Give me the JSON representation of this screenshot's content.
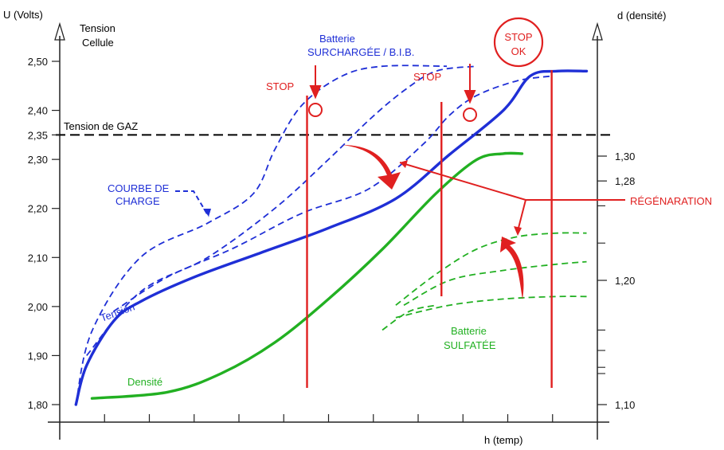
{
  "chart_data": {
    "type": "line",
    "title": "",
    "left_axis": {
      "label": "U (Volts)",
      "sublabel_line1": "Tension",
      "sublabel_line2": "Cellule",
      "ticks": [
        "1,80",
        "1,90",
        "2,00",
        "2,10",
        "2,20",
        "2,30",
        "2,35",
        "2,40",
        "2,50"
      ],
      "range": [
        1.78,
        2.55
      ]
    },
    "right_axis": {
      "label": "d (densité)",
      "ticks": [
        "1,10",
        "1,20",
        "1,28",
        "1,30"
      ]
    },
    "x_axis": {
      "label": "h (temp)",
      "tick_count": 11
    },
    "reference_line": {
      "label": "Tension de GAZ",
      "value": 2.35
    },
    "series": [
      {
        "name": "Tension",
        "color": "#1f2fd6",
        "style": "solid",
        "points": [
          [
            0.6,
            1.8
          ],
          [
            1.0,
            1.88
          ],
          [
            2.0,
            1.97
          ],
          [
            3.0,
            2.01
          ],
          [
            5.0,
            2.06
          ],
          [
            7.5,
            2.11
          ],
          [
            10.0,
            2.16
          ],
          [
            12.5,
            2.22
          ],
          [
            14.5,
            2.31
          ],
          [
            16.5,
            2.4
          ],
          [
            17.5,
            2.47
          ],
          [
            18.5,
            2.48
          ],
          [
            19.6,
            2.48
          ]
        ]
      },
      {
        "name": "Densité",
        "color": "#22b022",
        "style": "solid",
        "points": [
          [
            1.2,
            1.105
          ],
          [
            4.0,
            1.11
          ],
          [
            6.0,
            1.125
          ],
          [
            8.0,
            1.15
          ],
          [
            10.0,
            1.185
          ],
          [
            12.0,
            1.225
          ],
          [
            14.0,
            1.27
          ],
          [
            15.5,
            1.297
          ],
          [
            16.5,
            1.302
          ],
          [
            17.2,
            1.302
          ]
        ]
      }
    ],
    "series_overcharged": [
      {
        "color": "#1f2fd6",
        "points": [
          [
            0.6,
            1.8
          ],
          [
            1.2,
            1.95
          ],
          [
            3.0,
            2.1
          ],
          [
            5.5,
            2.17
          ],
          [
            7.2,
            2.23
          ],
          [
            8.0,
            2.32
          ],
          [
            9.0,
            2.41
          ],
          [
            10.5,
            2.47
          ],
          [
            12.0,
            2.49
          ],
          [
            14.4,
            2.49
          ]
        ]
      },
      {
        "color": "#1f2fd6",
        "points": [
          [
            1.0,
            1.9
          ],
          [
            3.0,
            2.03
          ],
          [
            5.5,
            2.1
          ],
          [
            8.0,
            2.2
          ],
          [
            10.0,
            2.3
          ],
          [
            11.5,
            2.38
          ],
          [
            12.8,
            2.44
          ],
          [
            14.0,
            2.48
          ],
          [
            15.5,
            2.49
          ]
        ]
      },
      {
        "color": "#1f2fd6",
        "points": [
          [
            2.0,
            1.99
          ],
          [
            4.0,
            2.06
          ],
          [
            6.5,
            2.12
          ],
          [
            9.0,
            2.19
          ],
          [
            11.5,
            2.24
          ],
          [
            13.5,
            2.33
          ],
          [
            14.5,
            2.39
          ],
          [
            15.5,
            2.43
          ],
          [
            17.0,
            2.46
          ],
          [
            18.3,
            2.47
          ]
        ]
      }
    ],
    "series_sulfated": [
      {
        "color": "#22b022",
        "points": [
          [
            12.5,
            1.18
          ],
          [
            14.0,
            1.205
          ],
          [
            15.5,
            1.225
          ],
          [
            17.0,
            1.235
          ],
          [
            18.5,
            1.238
          ],
          [
            19.6,
            1.238
          ]
        ]
      },
      {
        "color": "#22b022",
        "points": [
          [
            12.8,
            1.18
          ],
          [
            14.5,
            1.2
          ],
          [
            16.5,
            1.208
          ],
          [
            18.5,
            1.213
          ],
          [
            19.6,
            1.215
          ]
        ]
      },
      {
        "color": "#22b022",
        "points": [
          [
            12.5,
            1.17
          ],
          [
            14.5,
            1.18
          ],
          [
            16.5,
            1.185
          ],
          [
            18.5,
            1.187
          ],
          [
            19.6,
            1.187
          ]
        ]
      },
      {
        "color": "#22b022",
        "points": [
          [
            12.0,
            1.16
          ],
          [
            13.0,
            1.175
          ],
          [
            14.0,
            1.18
          ]
        ]
      }
    ],
    "stop_lines": [
      {
        "label": "STOP",
        "x": 9.2,
        "color": "#e02020"
      },
      {
        "label": "STOP",
        "x": 14.2,
        "color": "#e02020"
      },
      {
        "label": "STOP\nOK",
        "x": 18.3,
        "color": "#e02020"
      }
    ],
    "annotations": {
      "overcharged_line1": "Batterie",
      "overcharged_line2": "SURCHARGÉE / B.I.B.",
      "charge_curve_line1": "COURBE DE",
      "charge_curve_line2": "CHARGE",
      "sulfated_line1": "Batterie",
      "sulfated_line2": "SULFATÉE",
      "regeneration": "RÉGÉNARATION",
      "stop1": "STOP",
      "stop2": "STOP",
      "stop_ok_line1": "STOP",
      "stop_ok_line2": "OK",
      "tension": "Tension",
      "densite": "Densité"
    },
    "colors": {
      "blue": "#1f2fd6",
      "green": "#22b022",
      "red": "#e02020",
      "axis": "#222222"
    }
  }
}
